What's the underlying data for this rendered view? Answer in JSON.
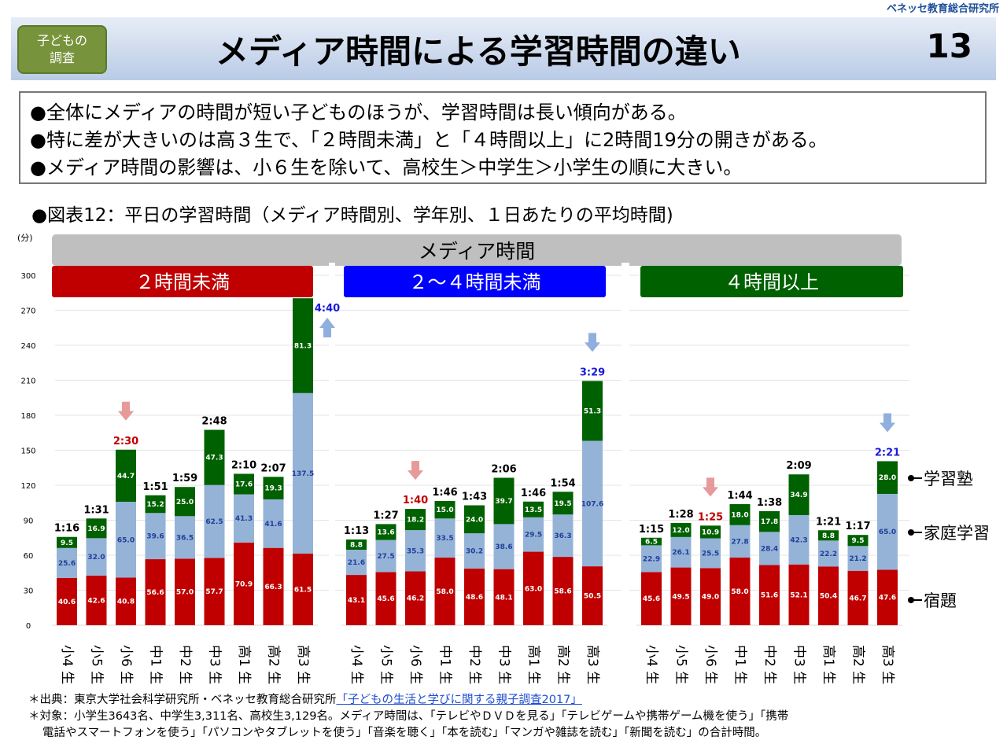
{
  "org": "ベネッセ教育総合研究所",
  "badge": "子どもの調査",
  "title": "メディア時間による学習時間の違い",
  "page_number": "13",
  "summary": [
    "●全体にメディアの時間が短い子どものほうが、学習時間は長い傾向がある。",
    "●特に差が大きいのは高３生で、「２時間未満」と「４時間以上」に2時間19分の開きがある。",
    "●メディア時間の影響は、小６生を除いて、高校生＞中学生＞小学生の順に大きい。"
  ],
  "figure_title": "●図表12：平日の学習時間（メディア時間別、学年別、１日あたりの平均時間)",
  "notes": {
    "source_prefix": "＊出典：東京大学社会科学研究所・ベネッセ教育総合研究所",
    "source_link": "「子どもの生活と学びに関する親子調査2017」",
    "target_line1": "＊対象：小学生3643名、中学生3,311名、高校生3,129名。メディア時間は、「テレビやＤＶＤを見る」「テレビゲームや携帯ゲーム機を使う」「携帯",
    "target_line2": "電話やスマートフォンを使う」「パソコンやタブレットを使う」「音楽を聴く」「本を読む」「マンガや雑誌を読む」「新聞を読む」の合計時間。"
  },
  "chart_data": {
    "type": "bar",
    "stacked": true,
    "title": "メディア時間",
    "ylabel": "(分)",
    "ylim": [
      0,
      300
    ],
    "yticks": [
      "0",
      "30",
      "60",
      "90",
      "120",
      "150",
      "180",
      "210",
      "240",
      "270",
      "300"
    ],
    "categories": [
      "小4 生",
      "小5 生",
      "小6 生",
      "中1 生",
      "中2 生",
      "中3 生",
      "高1 生",
      "高2 生",
      "高3 生"
    ],
    "series_names": [
      "宿題",
      "家庭学習",
      "学習塾"
    ],
    "colors": {
      "宿題": "#c00000",
      "家庭学習": "#95b3d7",
      "学習塾": "#006100"
    },
    "legend": [
      "学習塾",
      "家庭学習",
      "宿題"
    ],
    "groups": [
      {
        "name": "２時間未満",
        "header_color": "#c00000",
        "homework": [
          40.6,
          42.6,
          40.8,
          56.6,
          57.0,
          57.7,
          70.9,
          66.3,
          61.5
        ],
        "home_study": [
          25.6,
          32.0,
          65.0,
          39.6,
          36.5,
          62.5,
          41.3,
          41.6,
          137.5
        ],
        "cram_school": [
          9.5,
          16.9,
          44.7,
          15.2,
          25.0,
          47.3,
          17.6,
          19.3,
          81.3
        ],
        "totals": [
          "1:16",
          "1:31",
          "2:30",
          "1:51",
          "1:59",
          "2:48",
          "2:10",
          "2:07",
          "4:40"
        ]
      },
      {
        "name": "２～４時間未満",
        "header_color": "#0000ff",
        "homework": [
          43.1,
          45.6,
          46.2,
          58.0,
          48.6,
          48.1,
          63.0,
          58.6,
          50.5
        ],
        "home_study": [
          21.6,
          27.5,
          35.3,
          33.5,
          30.2,
          38.6,
          29.5,
          36.3,
          107.6
        ],
        "cram_school": [
          8.8,
          13.6,
          18.2,
          15.0,
          24.0,
          39.7,
          13.5,
          19.5,
          51.3
        ],
        "totals": [
          "1:13",
          "1:27",
          "1:40",
          "1:46",
          "1:43",
          "2:06",
          "1:46",
          "1:54",
          "3:29"
        ]
      },
      {
        "name": "４時間以上",
        "header_color": "#006100",
        "homework": [
          45.6,
          49.5,
          49.0,
          58.0,
          51.6,
          52.1,
          50.4,
          46.7,
          47.6
        ],
        "home_study": [
          22.9,
          26.1,
          25.5,
          27.8,
          28.4,
          42.3,
          22.2,
          21.2,
          65.0
        ],
        "cram_school": [
          6.5,
          12.0,
          10.9,
          18.0,
          17.8,
          34.9,
          8.8,
          9.5,
          28.0
        ],
        "totals": [
          "1:15",
          "1:28",
          "1:25",
          "1:44",
          "1:38",
          "2:09",
          "1:21",
          "1:17",
          "2:21"
        ]
      }
    ],
    "annotations": [
      {
        "group": 0,
        "category": "小6 生",
        "label": "2:30",
        "arrow": "down",
        "color": "#c00000"
      },
      {
        "group": 0,
        "category": "高3 生",
        "label": "4:40",
        "arrow": "up",
        "color": "#1a1adc"
      },
      {
        "group": 1,
        "category": "小6 生",
        "label": "1:40",
        "arrow": "down",
        "color": "#c00000"
      },
      {
        "group": 1,
        "category": "高3 生",
        "label": "3:29",
        "arrow": "down",
        "color": "#1a1adc"
      },
      {
        "group": 2,
        "category": "小6 生",
        "label": "1:25",
        "arrow": "down",
        "color": "#c00000"
      },
      {
        "group": 2,
        "category": "高3 生",
        "label": "2:21",
        "arrow": "down",
        "color": "#1a1adc"
      }
    ]
  }
}
